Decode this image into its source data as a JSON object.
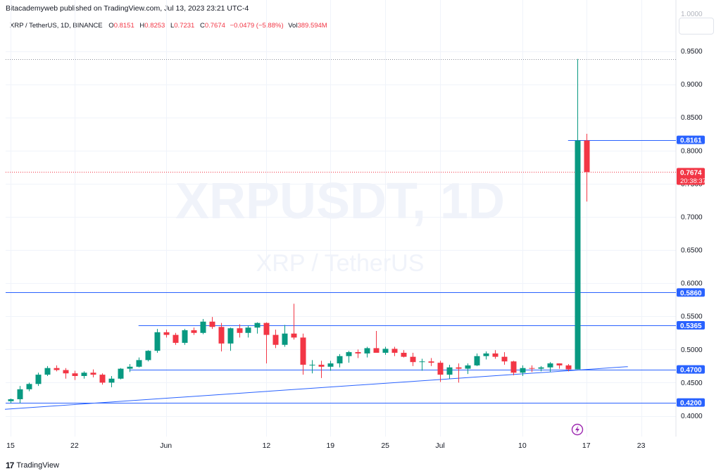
{
  "header": {
    "text": "Bitacademyweb published on TradingView.com, Jul 13, 2023 23:21 UTC-4"
  },
  "legend": {
    "symbol": "XRP / TetherUS, 1D, BINANCE",
    "open_label": "O",
    "open": "0.8151",
    "high_label": "H",
    "high": "0.8253",
    "low_label": "L",
    "low": "0.7231",
    "close_label": "C",
    "close": "0.7674",
    "change": "−0.0479 (−5.88%)",
    "vol_label": "Vol",
    "vol": "389.594M"
  },
  "watermark": {
    "ticker": "XRPUSDT, 1D",
    "name": "XRP / TetherUS"
  },
  "footer": {
    "brand": "TradingView",
    "logo": "17"
  },
  "colors": {
    "up": "#089981",
    "down": "#f23645",
    "line": "#2962ff",
    "grid": "#f0f3fa",
    "label_bg": "#2962ff",
    "current_bg": "#f23645"
  },
  "chart_data": {
    "type": "candlestick",
    "ylim": [
      0.395,
      0.985
    ],
    "y_ticks": [
      "0.9500",
      "0.9000",
      "0.8500",
      "0.8000",
      "0.7500",
      "0.7000",
      "0.6500",
      "0.6000",
      "0.5500",
      "0.5000",
      "0.4500",
      "0.4000"
    ],
    "x_ticks": [
      {
        "label": "15",
        "index": 0
      },
      {
        "label": "22",
        "index": 7
      },
      {
        "label": "Jun",
        "index": 17
      },
      {
        "label": "12",
        "index": 28
      },
      {
        "label": "19",
        "index": 35
      },
      {
        "label": "25",
        "index": 41
      },
      {
        "label": "Jul",
        "index": 47
      },
      {
        "label": "10",
        "index": 56
      },
      {
        "label": "17",
        "index": 63
      },
      {
        "label": "23",
        "index": 69
      }
    ],
    "candles": [
      [
        0.422,
        0.426,
        0.419,
        0.425
      ],
      [
        0.425,
        0.445,
        0.419,
        0.44
      ],
      [
        0.44,
        0.45,
        0.437,
        0.448
      ],
      [
        0.448,
        0.465,
        0.445,
        0.462
      ],
      [
        0.462,
        0.475,
        0.46,
        0.472
      ],
      [
        0.472,
        0.476,
        0.467,
        0.469
      ],
      [
        0.469,
        0.472,
        0.456,
        0.464
      ],
      [
        0.464,
        0.468,
        0.454,
        0.46
      ],
      [
        0.46,
        0.467,
        0.456,
        0.465
      ],
      [
        0.465,
        0.47,
        0.458,
        0.462
      ],
      [
        0.462,
        0.464,
        0.447,
        0.45
      ],
      [
        0.45,
        0.46,
        0.443,
        0.456
      ],
      [
        0.456,
        0.472,
        0.455,
        0.471
      ],
      [
        0.471,
        0.478,
        0.466,
        0.474
      ],
      [
        0.474,
        0.488,
        0.473,
        0.484
      ],
      [
        0.484,
        0.499,
        0.482,
        0.498
      ],
      [
        0.498,
        0.531,
        0.495,
        0.526
      ],
      [
        0.526,
        0.53,
        0.518,
        0.522
      ],
      [
        0.522,
        0.525,
        0.507,
        0.51
      ],
      [
        0.51,
        0.531,
        0.507,
        0.529
      ],
      [
        0.529,
        0.533,
        0.522,
        0.525
      ],
      [
        0.525,
        0.546,
        0.523,
        0.542
      ],
      [
        0.542,
        0.549,
        0.531,
        0.534
      ],
      [
        0.534,
        0.54,
        0.497,
        0.509
      ],
      [
        0.509,
        0.533,
        0.498,
        0.532
      ],
      [
        0.532,
        0.538,
        0.518,
        0.525
      ],
      [
        0.525,
        0.536,
        0.518,
        0.533
      ],
      [
        0.533,
        0.541,
        0.524,
        0.54
      ],
      [
        0.54,
        0.541,
        0.479,
        0.522
      ],
      [
        0.522,
        0.53,
        0.502,
        0.507
      ],
      [
        0.507,
        0.537,
        0.504,
        0.524
      ],
      [
        0.524,
        0.569,
        0.515,
        0.518
      ],
      [
        0.518,
        0.524,
        0.462,
        0.477
      ],
      [
        0.477,
        0.484,
        0.464,
        0.477
      ],
      [
        0.477,
        0.483,
        0.457,
        0.474
      ],
      [
        0.474,
        0.483,
        0.468,
        0.479
      ],
      [
        0.479,
        0.493,
        0.473,
        0.49
      ],
      [
        0.49,
        0.498,
        0.48,
        0.496
      ],
      [
        0.496,
        0.5,
        0.487,
        0.494
      ],
      [
        0.494,
        0.504,
        0.488,
        0.502
      ],
      [
        0.502,
        0.528,
        0.495,
        0.495
      ],
      [
        0.495,
        0.504,
        0.492,
        0.501
      ],
      [
        0.501,
        0.504,
        0.49,
        0.495
      ],
      [
        0.495,
        0.499,
        0.488,
        0.489
      ],
      [
        0.489,
        0.495,
        0.475,
        0.481
      ],
      [
        0.481,
        0.486,
        0.468,
        0.482
      ],
      [
        0.482,
        0.487,
        0.475,
        0.48
      ],
      [
        0.48,
        0.483,
        0.451,
        0.462
      ],
      [
        0.462,
        0.477,
        0.456,
        0.473
      ],
      [
        0.473,
        0.479,
        0.45,
        0.471
      ],
      [
        0.471,
        0.479,
        0.463,
        0.476
      ],
      [
        0.476,
        0.494,
        0.475,
        0.49
      ],
      [
        0.49,
        0.497,
        0.485,
        0.494
      ],
      [
        0.494,
        0.499,
        0.486,
        0.489
      ],
      [
        0.489,
        0.496,
        0.477,
        0.482
      ],
      [
        0.482,
        0.483,
        0.461,
        0.465
      ],
      [
        0.465,
        0.476,
        0.46,
        0.472
      ],
      [
        0.472,
        0.476,
        0.466,
        0.471
      ],
      [
        0.471,
        0.475,
        0.467,
        0.473
      ],
      [
        0.473,
        0.481,
        0.466,
        0.479
      ],
      [
        0.479,
        0.479,
        0.471,
        0.476
      ],
      [
        0.476,
        0.478,
        0.467,
        0.47
      ],
      [
        0.47,
        0.938,
        0.47,
        0.8151
      ],
      [
        0.8151,
        0.8253,
        0.7231,
        0.7674
      ]
    ],
    "horizontal_lines": [
      {
        "value": 0.8161,
        "label": "0.8161",
        "start_index": 61
      },
      {
        "value": 0.586,
        "label": "0.5860",
        "start_index": -1
      },
      {
        "value": 0.5365,
        "label": "0.5365",
        "start_index": 14
      },
      {
        "value": 0.47,
        "label": "0.4700",
        "start_index": 13
      },
      {
        "value": 0.42,
        "label": "0.4200",
        "start_index": -1
      }
    ],
    "trendline": {
      "from": [
        -1,
        0.413
      ],
      "to": [
        66,
        0.472
      ]
    },
    "dotted_lines": [
      {
        "value": 0.938
      },
      {
        "value": 0.7674
      }
    ],
    "current_price": {
      "value": 0.7674,
      "label": "0.7674",
      "countdown": "20:38:37"
    },
    "top_partial_label": "1.0000"
  }
}
